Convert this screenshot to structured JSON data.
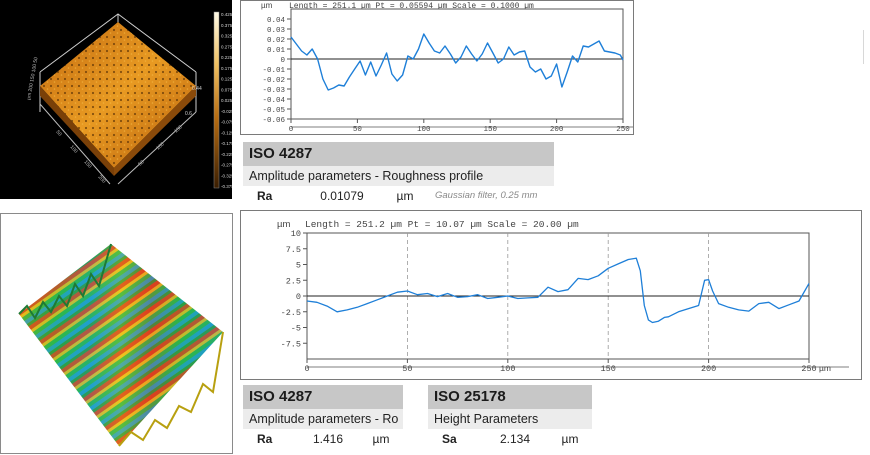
{
  "top": {
    "surface_colorbar_ticks": [
      "0.425",
      "0.375",
      "0.325",
      "0.275",
      "0.225",
      "0.175",
      "0.125",
      "0.075",
      "0.025",
      "-0.025",
      "-0.075",
      "-0.125",
      "-0.175",
      "-0.225",
      "-0.275",
      "-0.325",
      "-0.375"
    ],
    "surface_corner_labels": {
      "axis_right": "0.6",
      "axis_z": "0.44"
    },
    "table": {
      "standard": "ISO 4287",
      "subtitle": "Amplitude parameters - Roughness profile",
      "param": "Ra",
      "value": "0.01079",
      "unit": "µm",
      "note": "Gaussian filter, 0.25 mm"
    }
  },
  "bottom": {
    "table1": {
      "standard": "ISO 4287",
      "subtitle": "Amplitude parameters - Ro",
      "param": "Ra",
      "value": "1.416",
      "unit": "µm"
    },
    "table2": {
      "standard": "ISO 25178",
      "subtitle": "Height Parameters",
      "param": "Sa",
      "value": "2.134",
      "unit": "µm"
    }
  },
  "colors": {
    "line": "#1e7fd8",
    "header_gray": "#c7c7c7",
    "subheader_gray": "#ececec",
    "surface_orange": "#e0901a"
  },
  "chart_data": [
    {
      "type": "line",
      "header": "Length = 251.1 µm  Pt = 0.05594 µm  Scale = 0.1000 µm",
      "unit_label": "µm",
      "x_unit_label": "µm",
      "xlim": [
        0,
        250
      ],
      "ylim": [
        -0.06,
        0.05
      ],
      "x_ticks": [
        0,
        50,
        100,
        150,
        200,
        250
      ],
      "y_ticks": [
        0.04,
        0.03,
        0.02,
        0.01,
        0,
        -0.01,
        -0.02,
        -0.03,
        -0.04,
        -0.05,
        -0.06
      ],
      "y_tick_labels": [
        "0.04",
        "0.03",
        "0.02",
        "0.01",
        "0",
        "-0.01",
        "-0.02",
        "-0.03",
        "-0.04",
        "-0.05",
        "-0.06"
      ],
      "grid": false,
      "x": [
        0,
        4,
        8,
        12,
        16,
        20,
        24,
        28,
        32,
        36,
        40,
        44,
        48,
        52,
        56,
        60,
        64,
        68,
        72,
        76,
        80,
        84,
        88,
        92,
        96,
        100,
        104,
        108,
        112,
        116,
        120,
        124,
        128,
        132,
        136,
        140,
        144,
        148,
        152,
        156,
        160,
        164,
        168,
        172,
        176,
        180,
        184,
        188,
        192,
        196,
        200,
        204,
        208,
        212,
        216,
        220,
        224,
        228,
        232,
        236,
        240,
        244,
        248,
        250
      ],
      "y": [
        0.022,
        0.015,
        0.008,
        0.004,
        0.01,
        0.0,
        -0.02,
        -0.031,
        -0.029,
        -0.026,
        -0.027,
        -0.018,
        -0.01,
        -0.002,
        -0.016,
        -0.003,
        -0.017,
        -0.006,
        0.006,
        -0.015,
        -0.022,
        -0.016,
        0.003,
        0.0,
        0.01,
        0.025,
        0.016,
        0.008,
        0.006,
        0.013,
        0.005,
        -0.004,
        0.002,
        0.013,
        0.005,
        -0.002,
        0.005,
        0.016,
        0.006,
        -0.004,
        0.0,
        0.012,
        0.004,
        0.007,
        0.008,
        -0.008,
        -0.013,
        -0.01,
        -0.02,
        -0.017,
        -0.005,
        -0.028,
        -0.013,
        0.003,
        -0.003,
        0.013,
        0.012,
        0.015,
        0.018,
        0.008,
        0.007,
        0.006,
        0.004,
        -0.001
      ]
    },
    {
      "type": "line",
      "header": "Length = 251.2 µm  Pt = 10.07 µm  Scale = 20.00 µm",
      "unit_label": "µm",
      "x_unit_label": "µm",
      "xlim": [
        0,
        250
      ],
      "ylim": [
        -10,
        10
      ],
      "x_ticks": [
        0,
        50,
        100,
        150,
        200,
        250
      ],
      "y_ticks": [
        10,
        7.5,
        5,
        2.5,
        0,
        -2.5,
        -5,
        -7.5
      ],
      "y_tick_labels": [
        "10",
        "7.5",
        "5",
        "2.5",
        "0",
        "-2.5",
        "-5",
        "-7.5"
      ],
      "grid": true,
      "x": [
        0,
        5,
        10,
        15,
        20,
        25,
        30,
        35,
        40,
        45,
        50,
        55,
        60,
        65,
        70,
        75,
        80,
        85,
        90,
        95,
        100,
        105,
        110,
        115,
        120,
        125,
        130,
        135,
        140,
        145,
        150,
        155,
        160,
        164,
        166,
        168,
        170,
        172,
        175,
        178,
        180,
        185,
        190,
        195,
        198,
        200,
        202,
        205,
        210,
        215,
        220,
        225,
        230,
        235,
        240,
        245,
        250
      ],
      "y": [
        -0.8,
        -1.0,
        -1.6,
        -2.5,
        -2.2,
        -1.8,
        -1.2,
        -0.6,
        0.0,
        0.6,
        0.8,
        0.2,
        0.4,
        -0.1,
        0.4,
        -0.2,
        -0.1,
        0.2,
        -0.4,
        -0.2,
        0.0,
        -0.4,
        -0.3,
        -0.2,
        1.4,
        0.7,
        1.0,
        2.8,
        2.6,
        3.2,
        4.4,
        5.1,
        5.8,
        6.0,
        4.0,
        -1.5,
        -3.8,
        -4.2,
        -4.0,
        -3.4,
        -3.3,
        -2.5,
        -2.0,
        -1.5,
        2.5,
        2.6,
        0.8,
        -1.2,
        -1.8,
        -2.2,
        -2.4,
        -1.2,
        -1.0,
        -2.0,
        -1.4,
        -0.8,
        2.0
      ]
    }
  ]
}
